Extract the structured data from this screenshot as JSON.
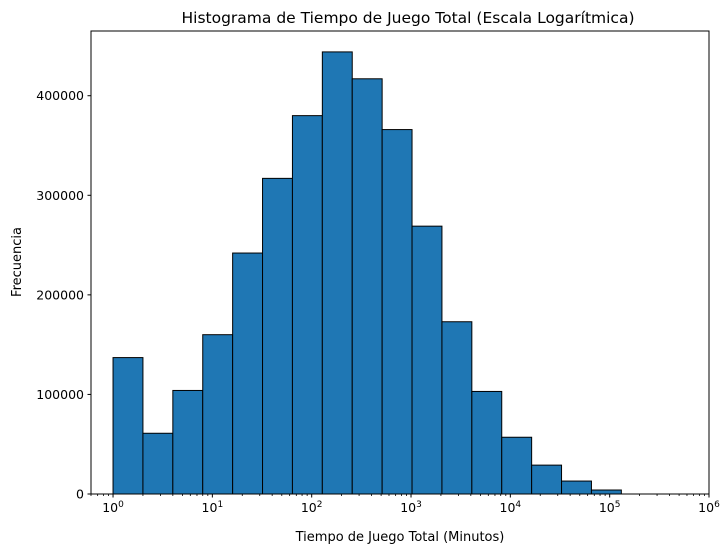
{
  "chart_data": {
    "type": "bar",
    "title": "Histograma de Tiempo de Juego Total (Escala Logarítmica)",
    "xlabel": "Tiempo de Juego Total (Minutos)",
    "ylabel": "Frecuencia",
    "x_scale": "log",
    "xlim": [
      0.6,
      1000000
    ],
    "ylim": [
      0,
      465000
    ],
    "grid": false,
    "legend": "none",
    "bar_color": "#1f77b4",
    "edge_color": "#000000",
    "x_ticks": [
      {
        "base": "10",
        "exp": "0",
        "value": 1
      },
      {
        "base": "10",
        "exp": "1",
        "value": 10
      },
      {
        "base": "10",
        "exp": "2",
        "value": 100
      },
      {
        "base": "10",
        "exp": "3",
        "value": 1000
      },
      {
        "base": "10",
        "exp": "4",
        "value": 10000
      },
      {
        "base": "10",
        "exp": "5",
        "value": 100000
      },
      {
        "base": "10",
        "exp": "6",
        "value": 1000000
      }
    ],
    "y_ticks": [
      {
        "label": "0",
        "value": 0
      },
      {
        "label": "100000",
        "value": 100000
      },
      {
        "label": "200000",
        "value": 200000
      },
      {
        "label": "300000",
        "value": 300000
      },
      {
        "label": "400000",
        "value": 400000
      }
    ],
    "bins": [
      {
        "x0": 1,
        "x1": 2,
        "count": 137000
      },
      {
        "x0": 2,
        "x1": 4,
        "count": 61000
      },
      {
        "x0": 4,
        "x1": 8,
        "count": 104000
      },
      {
        "x0": 8,
        "x1": 16,
        "count": 160000
      },
      {
        "x0": 16,
        "x1": 32,
        "count": 242000
      },
      {
        "x0": 32,
        "x1": 64,
        "count": 317000
      },
      {
        "x0": 64,
        "x1": 128,
        "count": 380000
      },
      {
        "x0": 128,
        "x1": 256,
        "count": 444000
      },
      {
        "x0": 256,
        "x1": 512,
        "count": 417000
      },
      {
        "x0": 512,
        "x1": 1024,
        "count": 366000
      },
      {
        "x0": 1024,
        "x1": 2048,
        "count": 269000
      },
      {
        "x0": 2048,
        "x1": 4096,
        "count": 173000
      },
      {
        "x0": 4096,
        "x1": 8192,
        "count": 103000
      },
      {
        "x0": 8192,
        "x1": 16384,
        "count": 57000
      },
      {
        "x0": 16384,
        "x1": 32768,
        "count": 29000
      },
      {
        "x0": 32768,
        "x1": 65536,
        "count": 13000
      },
      {
        "x0": 65536,
        "x1": 131072,
        "count": 4000
      }
    ]
  }
}
